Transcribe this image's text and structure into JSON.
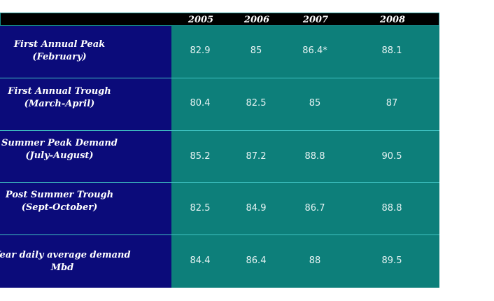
{
  "table": {
    "years": [
      "2005",
      "2006",
      "2007",
      "2008"
    ],
    "rows": [
      {
        "label_line1": "First Annual Peak",
        "label_line2": "(February)",
        "values": [
          "82.9",
          "85",
          "86.4*",
          "88.1"
        ]
      },
      {
        "label_line1": "First Annual Trough",
        "label_line2": "(March-April)",
        "values": [
          "80.4",
          "82.5",
          "85",
          "87"
        ]
      },
      {
        "label_line1": "Summer Peak Demand",
        "label_line2": "(July-August)",
        "values": [
          "85.2",
          "87.2",
          "88.8",
          "90.5"
        ]
      },
      {
        "label_line1": "Post Summer Trough",
        "label_line2": "(Sept-October)",
        "values": [
          "82.5",
          "84.9",
          "86.7",
          "88.8"
        ]
      },
      {
        "label_line1": "Year daily average demand",
        "label_line2": "Mbd",
        "values": [
          "84.4",
          "86.4",
          "88",
          "89.5"
        ]
      }
    ]
  },
  "colors": {
    "label_panel": "#0b0b7a",
    "value_panel": "#0d7f7a",
    "header": "#000000",
    "divider": "#3fc2c2"
  }
}
